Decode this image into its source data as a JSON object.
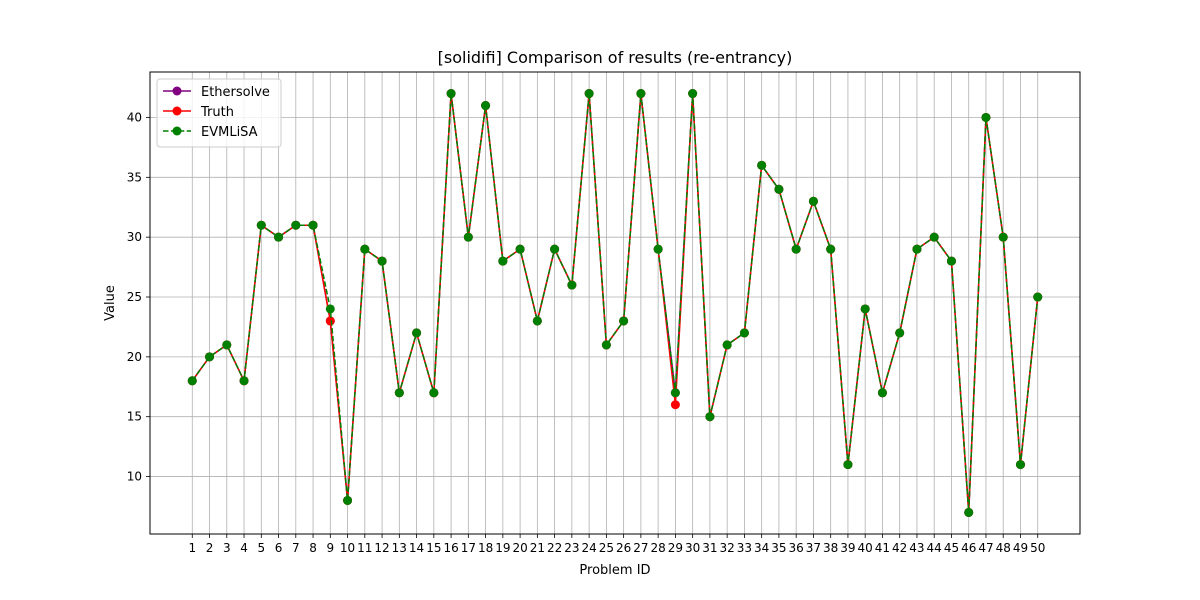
{
  "chart_data": {
    "type": "line",
    "title": "[solidifi] Comparison of results (re-entrancy)",
    "xlabel": "Problem ID",
    "ylabel": "Value",
    "ylim": [
      5.2,
      43.8
    ],
    "yticks": [
      10,
      15,
      20,
      25,
      30,
      35,
      40
    ],
    "grid": true,
    "legend_position": "top-left",
    "x": [
      1,
      2,
      3,
      4,
      5,
      6,
      7,
      8,
      9,
      10,
      11,
      12,
      13,
      14,
      15,
      16,
      17,
      18,
      19,
      20,
      21,
      22,
      23,
      24,
      25,
      26,
      27,
      28,
      29,
      30,
      31,
      32,
      33,
      34,
      35,
      36,
      37,
      38,
      39,
      40,
      41,
      42,
      43,
      44,
      45,
      46,
      47,
      48,
      49,
      50
    ],
    "series": [
      {
        "name": "Ethersolve",
        "color": "#800080",
        "linestyle": "solid",
        "values": [
          18,
          20,
          21,
          18,
          31,
          30,
          31,
          31,
          23,
          8,
          29,
          28,
          17,
          22,
          17,
          42,
          30,
          41,
          28,
          29,
          23,
          29,
          26,
          42,
          21,
          23,
          42,
          29,
          17,
          42,
          15,
          21,
          22,
          36,
          34,
          29,
          33,
          29,
          11,
          24,
          17,
          22,
          29,
          30,
          28,
          7,
          40,
          30,
          11,
          25
        ]
      },
      {
        "name": "Truth",
        "color": "#ff0000",
        "linestyle": "solid",
        "values": [
          18,
          20,
          21,
          18,
          31,
          30,
          31,
          31,
          23,
          8,
          29,
          28,
          17,
          22,
          17,
          42,
          30,
          41,
          28,
          29,
          23,
          29,
          26,
          42,
          21,
          23,
          42,
          29,
          16,
          42,
          15,
          21,
          22,
          36,
          34,
          29,
          33,
          29,
          11,
          24,
          17,
          22,
          29,
          30,
          28,
          7,
          40,
          30,
          11,
          25
        ]
      },
      {
        "name": "EVMLiSA",
        "color": "#008000",
        "linestyle": "dashed",
        "values": [
          18,
          20,
          21,
          18,
          31,
          30,
          31,
          31,
          24,
          8,
          29,
          28,
          17,
          22,
          17,
          42,
          30,
          41,
          28,
          29,
          23,
          29,
          26,
          42,
          21,
          23,
          42,
          29,
          17,
          42,
          15,
          21,
          22,
          36,
          34,
          29,
          33,
          29,
          11,
          24,
          17,
          22,
          29,
          30,
          28,
          7,
          40,
          30,
          11,
          25
        ]
      }
    ]
  }
}
